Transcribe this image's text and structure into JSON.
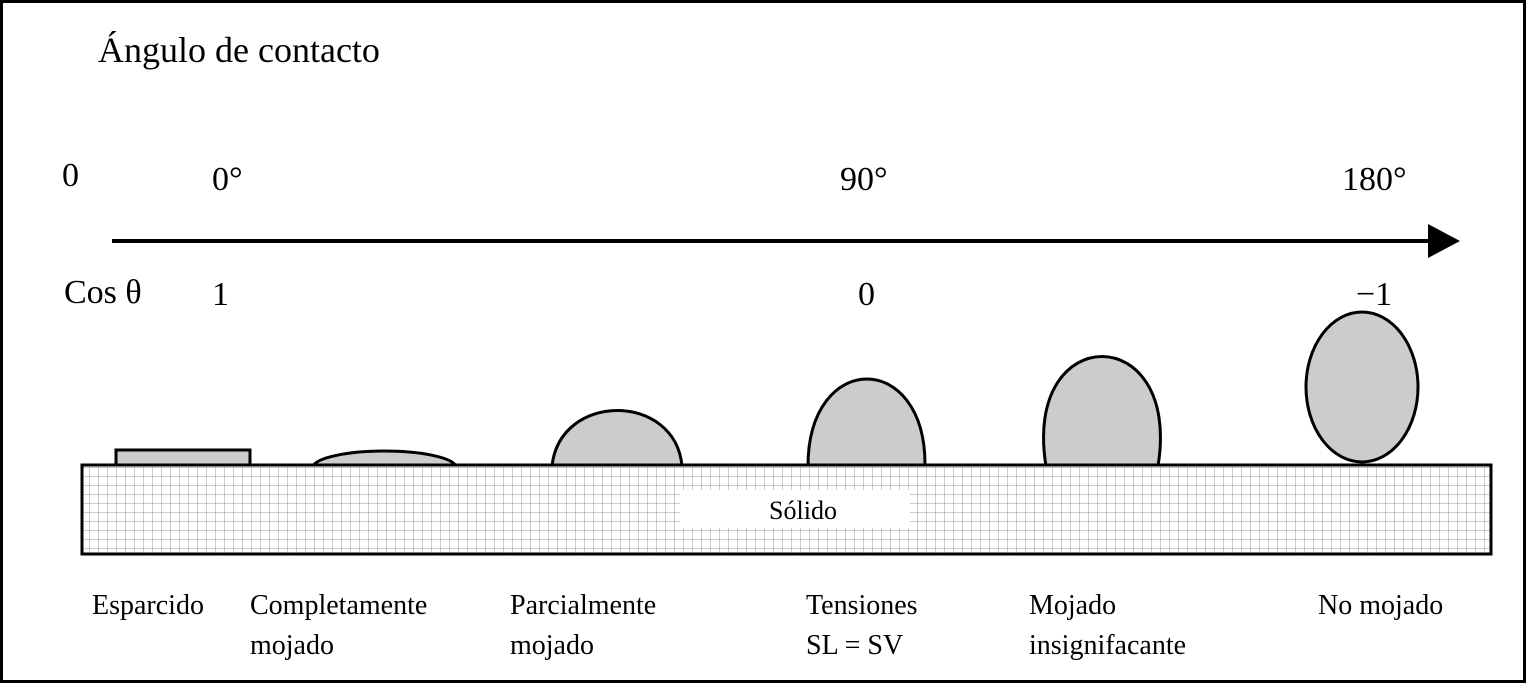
{
  "title": "Ángulo de contacto",
  "angle_row": {
    "label": "0",
    "ticks": [
      "0°",
      "90°",
      "180°"
    ]
  },
  "cos_row": {
    "label": "Cos θ",
    "ticks": [
      "1",
      "0",
      "−1"
    ]
  },
  "solid": "Sólido",
  "drops": [
    {
      "lines": [
        "Esparcido"
      ]
    },
    {
      "lines": [
        "Completamente",
        "mojado"
      ]
    },
    {
      "lines": [
        "Parcialmente",
        "mojado"
      ]
    },
    {
      "lines": [
        "Tensiones",
        "SL = SV"
      ]
    },
    {
      "lines": [
        "Mojado",
        "insignifacante"
      ]
    },
    {
      "lines": [
        "No mojado"
      ]
    }
  ]
}
